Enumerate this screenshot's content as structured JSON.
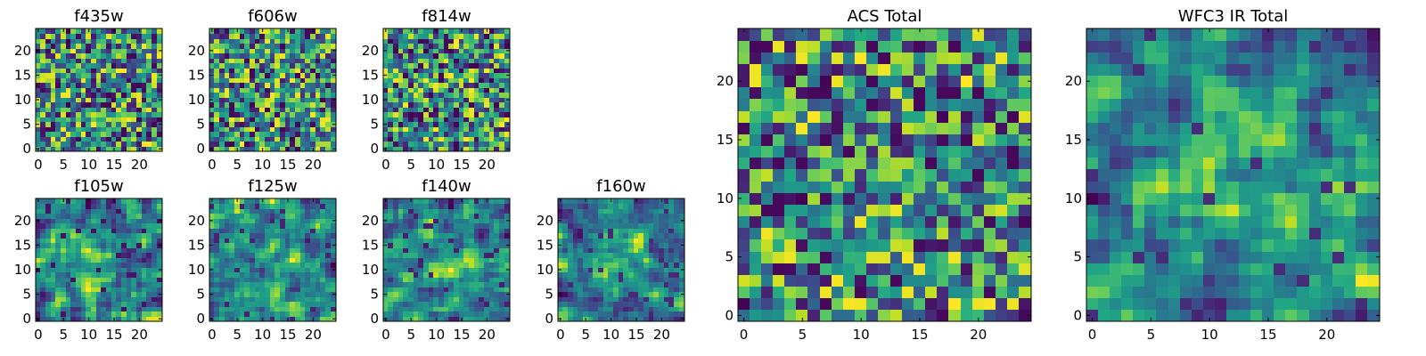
{
  "figure": {
    "colormap": "viridis",
    "background": "#ffffff"
  },
  "chart_data": [
    {
      "type": "heatmap",
      "title": "f435w",
      "grid_size": 25,
      "xticks": [
        "0",
        "5",
        "10",
        "15",
        "20"
      ],
      "yticks": [
        "0",
        "5",
        "10",
        "15",
        "20"
      ],
      "colormap": "viridis",
      "values_note_scale": "0-1 relative intensity",
      "values": []
    },
    {
      "type": "heatmap",
      "title": "f606w",
      "grid_size": 25,
      "xticks": [
        "0",
        "5",
        "10",
        "15",
        "20"
      ],
      "yticks": [
        "0",
        "5",
        "10",
        "15",
        "20"
      ],
      "colormap": "viridis",
      "values": []
    },
    {
      "type": "heatmap",
      "title": "f814w",
      "grid_size": 25,
      "xticks": [
        "0",
        "5",
        "10",
        "15",
        "20"
      ],
      "yticks": [
        "0",
        "5",
        "10",
        "15",
        "20"
      ],
      "colormap": "viridis",
      "values": []
    },
    {
      "type": "heatmap",
      "title": "f105w",
      "grid_size": 25,
      "xticks": [
        "0",
        "5",
        "10",
        "15",
        "20"
      ],
      "yticks": [
        "0",
        "5",
        "10",
        "15",
        "20"
      ],
      "colormap": "viridis",
      "values": []
    },
    {
      "type": "heatmap",
      "title": "f125w",
      "grid_size": 25,
      "xticks": [
        "0",
        "5",
        "10",
        "15",
        "20"
      ],
      "yticks": [
        "0",
        "5",
        "10",
        "15",
        "20"
      ],
      "colormap": "viridis",
      "values": []
    },
    {
      "type": "heatmap",
      "title": "f140w",
      "grid_size": 25,
      "xticks": [
        "0",
        "5",
        "10",
        "15",
        "20"
      ],
      "yticks": [
        "0",
        "5",
        "10",
        "15",
        "20"
      ],
      "colormap": "viridis",
      "values": []
    },
    {
      "type": "heatmap",
      "title": "f160w",
      "grid_size": 25,
      "xticks": [
        "0",
        "5",
        "10",
        "15",
        "20"
      ],
      "yticks": [
        "0",
        "5",
        "10",
        "15",
        "20"
      ],
      "colormap": "viridis",
      "values": []
    },
    {
      "type": "heatmap",
      "title": "ACS Total",
      "grid_size": 25,
      "xticks": [
        "0",
        "5",
        "10",
        "15",
        "20"
      ],
      "yticks": [
        "0",
        "5",
        "10",
        "15",
        "20"
      ],
      "colormap": "viridis",
      "values": []
    },
    {
      "type": "heatmap",
      "title": "WFC3 IR Total",
      "grid_size": 25,
      "xticks": [
        "0",
        "5",
        "10",
        "15",
        "20"
      ],
      "yticks": [
        "0",
        "5",
        "10",
        "15",
        "20"
      ],
      "colormap": "viridis",
      "values": []
    }
  ]
}
